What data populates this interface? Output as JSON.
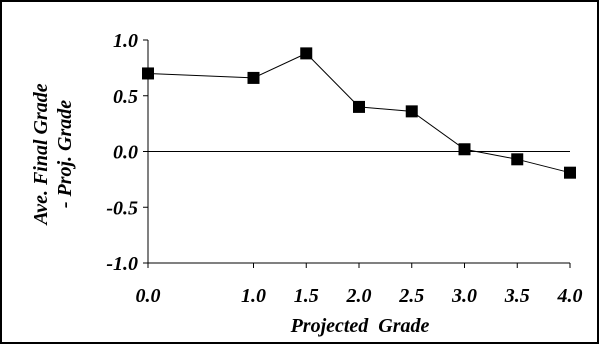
{
  "chart_data": {
    "type": "line",
    "xlabel": "Projected  Grade",
    "ylabel_lines": [
      "Ave. Final Grade",
      "- Proj. Grade"
    ],
    "x": [
      0.0,
      1.0,
      1.5,
      2.0,
      2.5,
      3.0,
      3.5,
      4.0
    ],
    "y": [
      0.7,
      0.66,
      0.88,
      0.4,
      0.36,
      0.02,
      -0.07,
      -0.19
    ],
    "xlim": [
      0.0,
      4.0
    ],
    "ylim": [
      -1.0,
      1.0
    ],
    "x_ticks": [
      0.0,
      1.0,
      1.5,
      2.0,
      2.5,
      3.0,
      3.5,
      4.0
    ],
    "x_tick_labels": [
      "0.0",
      "1.0",
      "1.5",
      "2.0",
      "2.5",
      "3.0",
      "3.5",
      "4.0"
    ],
    "y_ticks": [
      1.0,
      0.5,
      0.0,
      -0.5,
      -1.0
    ],
    "y_tick_labels": [
      "1.0",
      "0.5",
      "0.0",
      "-0.5",
      "-1.0"
    ],
    "zero_line": true,
    "grid": false,
    "marker": "square",
    "line_color": "#000000",
    "marker_color": "#000000"
  }
}
